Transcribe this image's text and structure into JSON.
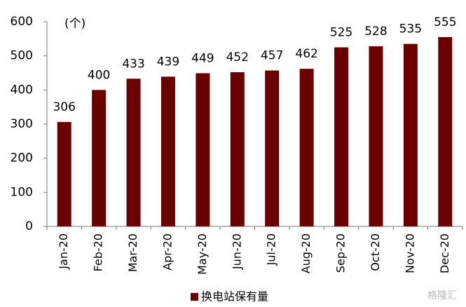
{
  "chart_data": {
    "type": "bar",
    "unit_label": "(个)",
    "categories": [
      "Jan-20",
      "Feb-20",
      "Mar-20",
      "Apr-20",
      "May-20",
      "Jun-20",
      "Jul-20",
      "Aug-20",
      "Sep-20",
      "Oct-20",
      "Nov-20",
      "Dec-20"
    ],
    "series": [
      {
        "name": "换电站保有量",
        "color": "#6b0000",
        "values": [
          306,
          400,
          433,
          439,
          449,
          452,
          457,
          462,
          525,
          528,
          535,
          555
        ]
      }
    ],
    "ylim": [
      0,
      600
    ],
    "yticks": [
      0,
      100,
      200,
      300,
      400,
      500,
      600
    ],
    "grid": false,
    "legend": "bottom",
    "watermark": "格隆汇"
  }
}
